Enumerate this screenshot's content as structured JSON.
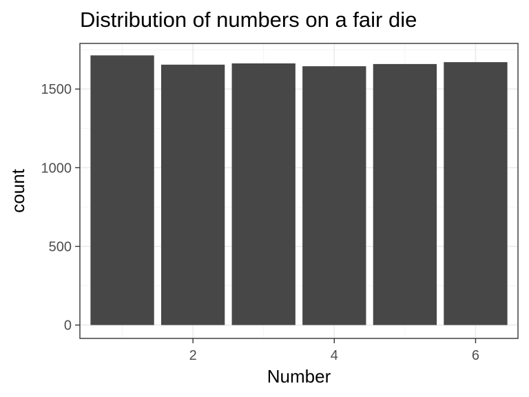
{
  "chart_data": {
    "type": "bar",
    "title": "Distribution of numbers on a fair die",
    "xlabel": "Number",
    "ylabel": "count",
    "categories": [
      1,
      2,
      3,
      4,
      5,
      6
    ],
    "values": [
      1714,
      1655,
      1663,
      1645,
      1659,
      1671
    ],
    "xlim": [
      0.4,
      6.6
    ],
    "ylim": [
      -85,
      1790
    ],
    "x_ticks": [
      2,
      4,
      6
    ],
    "y_ticks": [
      0,
      500,
      1000,
      1500
    ],
    "bar_color": "#474747",
    "grid": true,
    "legend": "none"
  }
}
